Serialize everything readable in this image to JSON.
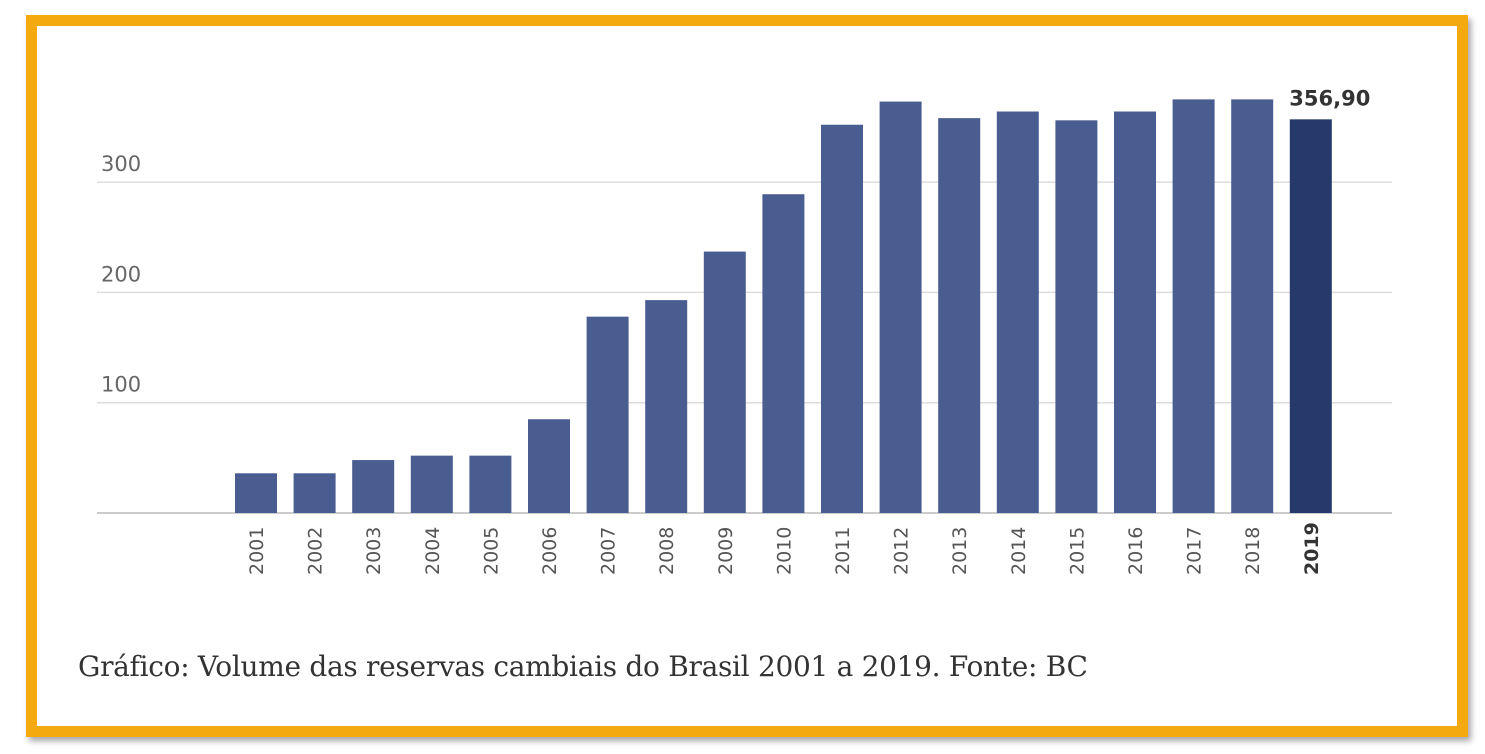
{
  "caption": "Gráfico: Volume das reservas cambiais do Brasil 2001 a 2019. Fonte: BC",
  "colors": {
    "frame": "#f4a90f",
    "bar": "#4a5d91",
    "bar_highlight": "#253a6a",
    "grid": "#dddddd",
    "axis": "#bbbbbb"
  },
  "chart_data": {
    "type": "bar",
    "title": "",
    "xlabel": "",
    "ylabel": "",
    "categories": [
      "2001",
      "2002",
      "2003",
      "2004",
      "2005",
      "2006",
      "2007",
      "2008",
      "2009",
      "2010",
      "2011",
      "2012",
      "2013",
      "2014",
      "2015",
      "2016",
      "2017",
      "2018",
      "2019"
    ],
    "values": [
      36,
      36,
      48,
      52,
      52,
      85,
      178,
      193,
      237,
      289,
      352,
      373,
      358,
      364,
      356,
      364,
      375,
      375,
      356.9
    ],
    "highlight_index": 18,
    "data_labels": [
      {
        "index": 18,
        "text": "356,90"
      }
    ],
    "y_ticks": [
      100,
      200,
      300
    ],
    "y_tick_labels": [
      "100",
      "200",
      "300"
    ],
    "ylim": [
      0,
      400
    ],
    "grid": true,
    "legend": "none"
  }
}
